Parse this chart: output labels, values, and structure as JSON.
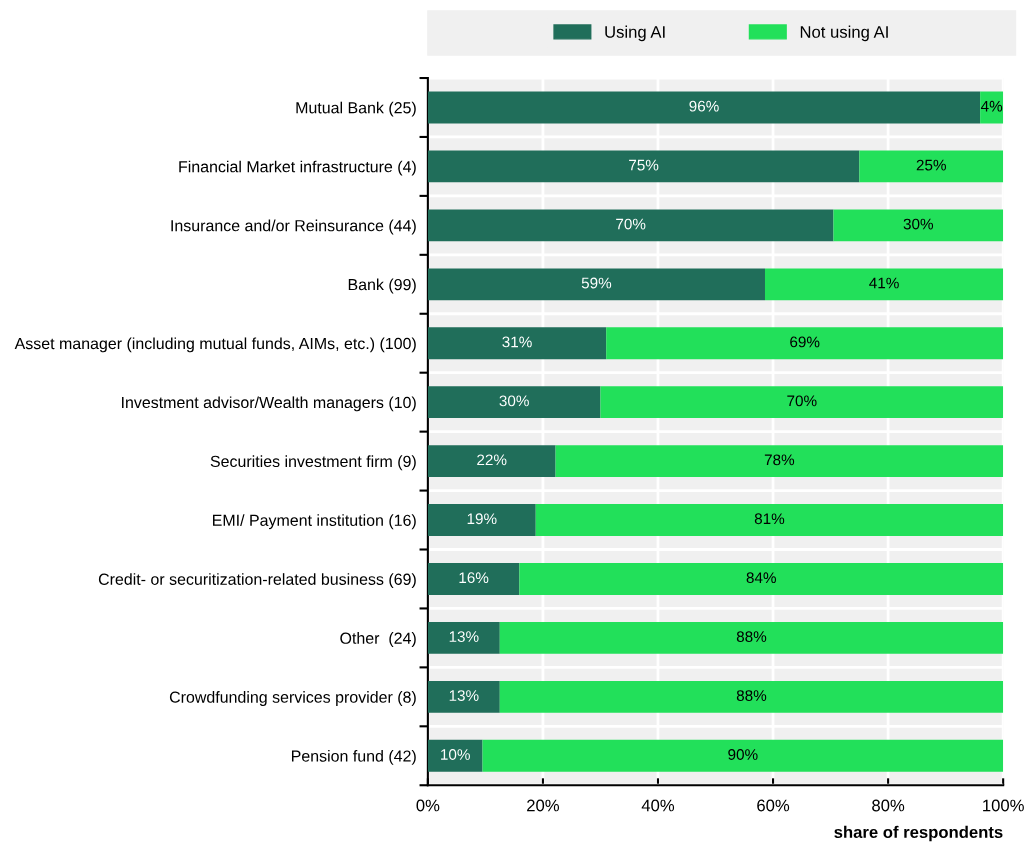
{
  "chart_data": {
    "type": "bar",
    "orientation": "horizontal",
    "stacked": true,
    "xlabel": "share of respondents",
    "categories": [
      "Mutual Bank (25)",
      "Financial Market infrastructure (4)",
      "Insurance and/or Reinsurance (44)",
      "Bank (99)",
      "Asset manager (including mutual funds, AIMs, etc.) (100)",
      "Investment advisor/Wealth managers (10)",
      "Securities investment firm (9)",
      "EMI/ Payment institution (16)",
      "Credit- or securitization-related business (69)",
      "Other  (24)",
      "Crowdfunding services provider (8)",
      "Pension fund (42)"
    ],
    "series": [
      {
        "name": "Using AI",
        "color": "#206e5a",
        "values": [
          96,
          75,
          70.5,
          58.6,
          31,
          30,
          22.2,
          18.75,
          15.9,
          12.5,
          12.5,
          9.5
        ],
        "value_labels": [
          "96%",
          "75%",
          "70%",
          "59%",
          "31%",
          "30%",
          "22%",
          "19%",
          "16%",
          "13%",
          "13%",
          "10%"
        ]
      },
      {
        "name": "Not using AI",
        "color": "#22e05a",
        "values": [
          4,
          25,
          29.5,
          41.4,
          69,
          70,
          77.8,
          81.25,
          84.1,
          87.5,
          87.5,
          90.5
        ],
        "value_labels": [
          "4%",
          "25%",
          "30%",
          "41%",
          "69%",
          "70%",
          "78%",
          "81%",
          "84%",
          "88%",
          "88%",
          "90%"
        ]
      }
    ],
    "xlim": [
      0,
      100
    ],
    "xticks": [
      {
        "value": 0,
        "label": "0%"
      },
      {
        "value": 20,
        "label": "20%"
      },
      {
        "value": 40,
        "label": "40%"
      },
      {
        "value": 60,
        "label": "60%"
      },
      {
        "value": 80,
        "label": "80%"
      },
      {
        "value": 100,
        "label": "100%"
      }
    ],
    "grid": true,
    "legend": "top"
  }
}
